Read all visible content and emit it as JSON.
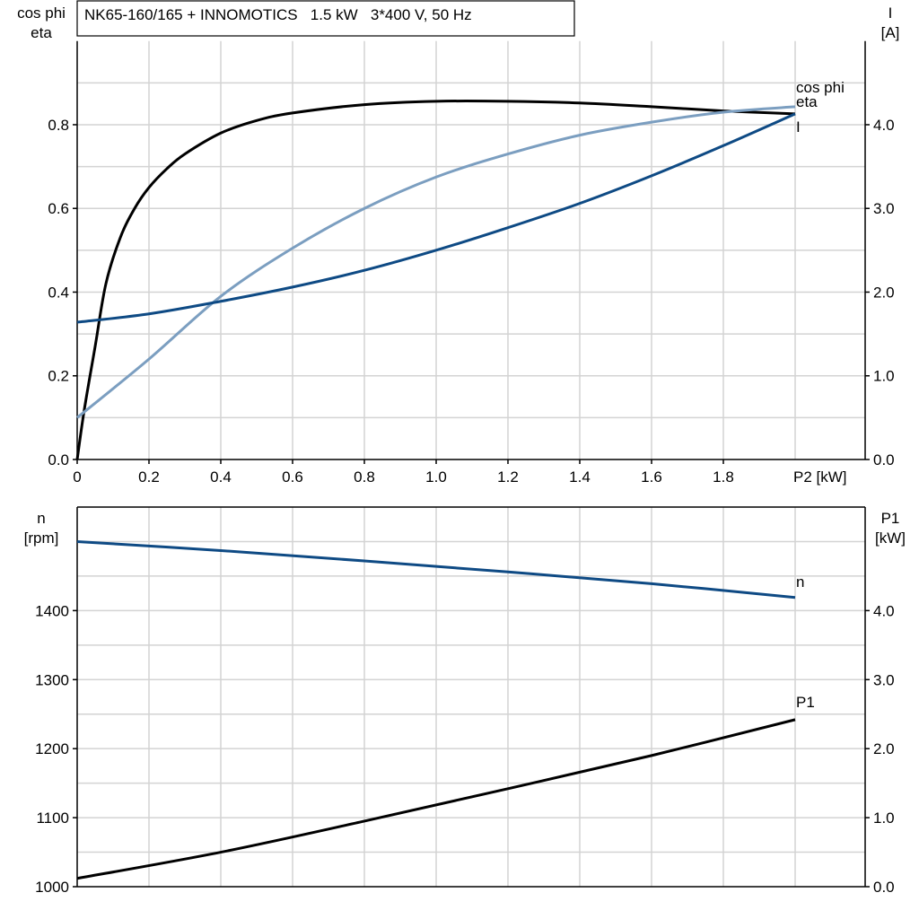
{
  "colors": {
    "eta": "#000000",
    "cos_phi": "#7b9ec0",
    "I": "#0e4a84",
    "n": "#0e4a84",
    "P1": "#000000"
  },
  "chart_data": [
    {
      "type": "line",
      "title": "NK65-160/165 + INNOMOTICS   1.5 kW   3*400 V, 50 Hz",
      "xlabel": "P2 [kW]",
      "ylabel_left": [
        "cos phi",
        "eta"
      ],
      "ylabel_right": [
        "I",
        "[A]"
      ],
      "xlim": [
        0,
        2.2
      ],
      "ylim_left": [
        0,
        1.0
      ],
      "ylim_right": [
        0,
        5.0
      ],
      "x_ticks": [
        "0",
        "0.2",
        "0.4",
        "0.6",
        "0.8",
        "1.0",
        "1.2",
        "1.4",
        "1.6",
        "1.8"
      ],
      "y_ticks_left": [
        "0.0",
        "0.2",
        "0.4",
        "0.6",
        "0.8"
      ],
      "y_ticks_right": [
        "0.0",
        "1.0",
        "2.0",
        "3.0",
        "4.0"
      ],
      "grid": true,
      "series": [
        {
          "name": "eta",
          "axis": "left",
          "x": [
            0,
            0.02,
            0.05,
            0.08,
            0.12,
            0.16,
            0.2,
            0.25,
            0.3,
            0.4,
            0.5,
            0.6,
            0.8,
            1.0,
            1.2,
            1.4,
            1.6,
            1.8,
            2.0
          ],
          "y": [
            0,
            0.12,
            0.27,
            0.42,
            0.53,
            0.6,
            0.65,
            0.695,
            0.73,
            0.78,
            0.81,
            0.828,
            0.848,
            0.856,
            0.856,
            0.852,
            0.843,
            0.833,
            0.826
          ]
        },
        {
          "name": "cos phi",
          "axis": "left",
          "x": [
            0,
            0.2,
            0.4,
            0.6,
            0.8,
            1.0,
            1.2,
            1.4,
            1.6,
            1.8,
            2.0
          ],
          "y": [
            0.1,
            0.24,
            0.39,
            0.505,
            0.6,
            0.675,
            0.73,
            0.775,
            0.806,
            0.83,
            0.843
          ]
        },
        {
          "name": "I",
          "axis": "right",
          "x": [
            0,
            0.2,
            0.4,
            0.6,
            0.8,
            1.0,
            1.2,
            1.4,
            1.6,
            1.8,
            2.0
          ],
          "y": [
            1.64,
            1.74,
            1.89,
            2.06,
            2.26,
            2.5,
            2.77,
            3.06,
            3.39,
            3.75,
            4.13
          ]
        }
      ]
    },
    {
      "type": "line",
      "ylabel_left": [
        "n",
        "[rpm]"
      ],
      "ylabel_right": [
        "P1",
        "[kW]"
      ],
      "xlim": [
        0,
        2.2
      ],
      "ylim_left": [
        1000,
        1550
      ],
      "ylim_right": [
        0,
        5.5
      ],
      "y_ticks_left": [
        "1000",
        "1100",
        "1200",
        "1300",
        "1400"
      ],
      "y_ticks_right": [
        "0.0",
        "1.0",
        "2.0",
        "3.0",
        "4.0"
      ],
      "grid": true,
      "series": [
        {
          "name": "n",
          "axis": "left",
          "x": [
            0,
            0.4,
            0.8,
            1.2,
            1.6,
            2.0
          ],
          "y": [
            1500,
            1487,
            1472,
            1456,
            1439,
            1419
          ]
        },
        {
          "name": "P1",
          "axis": "right",
          "x": [
            0,
            0.4,
            0.8,
            1.2,
            1.6,
            2.0
          ],
          "y": [
            0.12,
            0.5,
            0.95,
            1.42,
            1.9,
            2.42
          ]
        }
      ]
    }
  ]
}
